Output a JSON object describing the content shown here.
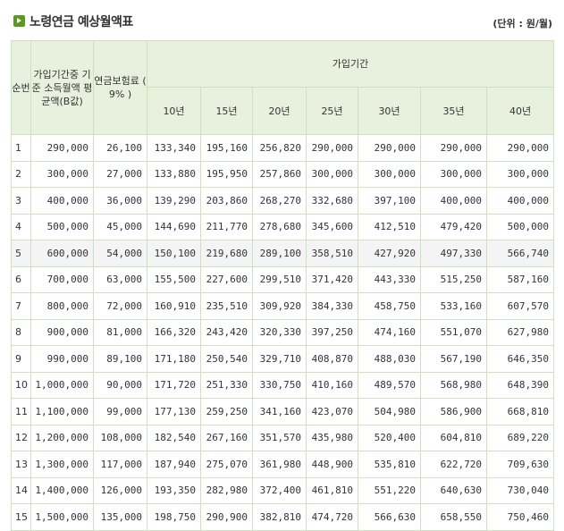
{
  "page": {
    "title": "노령연금 예상월액표",
    "unit": "(단위 : 원/월)"
  },
  "table": {
    "headers": {
      "seq": "순번",
      "income": "가입기간중 기준 소득월액 평균액(B값)",
      "premium": "연금보험료 ( 9% )",
      "period": "가입기간",
      "years": [
        "10년",
        "15년",
        "20년",
        "25년",
        "30년",
        "35년",
        "40년"
      ]
    },
    "rows": [
      {
        "no": "1",
        "income": "290,000",
        "premium": "26,100",
        "v": [
          "133,340",
          "195,160",
          "256,820",
          "290,000",
          "290,000",
          "290,000",
          "290,000"
        ]
      },
      {
        "no": "2",
        "income": "300,000",
        "premium": "27,000",
        "v": [
          "133,880",
          "195,950",
          "257,860",
          "300,000",
          "300,000",
          "300,000",
          "300,000"
        ]
      },
      {
        "no": "3",
        "income": "400,000",
        "premium": "36,000",
        "v": [
          "139,290",
          "203,860",
          "268,270",
          "332,680",
          "397,100",
          "400,000",
          "400,000"
        ]
      },
      {
        "no": "4",
        "income": "500,000",
        "premium": "45,000",
        "v": [
          "144,690",
          "211,770",
          "278,680",
          "345,600",
          "412,510",
          "479,420",
          "500,000"
        ]
      },
      {
        "no": "5",
        "income": "600,000",
        "premium": "54,000",
        "v": [
          "150,100",
          "219,680",
          "289,100",
          "358,510",
          "427,920",
          "497,330",
          "566,740"
        ]
      },
      {
        "no": "6",
        "income": "700,000",
        "premium": "63,000",
        "v": [
          "155,500",
          "227,600",
          "299,510",
          "371,420",
          "443,330",
          "515,250",
          "587,160"
        ]
      },
      {
        "no": "7",
        "income": "800,000",
        "premium": "72,000",
        "v": [
          "160,910",
          "235,510",
          "309,920",
          "384,330",
          "458,750",
          "533,160",
          "607,570"
        ]
      },
      {
        "no": "8",
        "income": "900,000",
        "premium": "81,000",
        "v": [
          "166,320",
          "243,420",
          "320,330",
          "397,250",
          "474,160",
          "551,070",
          "627,980"
        ]
      },
      {
        "no": "9",
        "income": "990,000",
        "premium": "89,100",
        "v": [
          "171,180",
          "250,540",
          "329,710",
          "408,870",
          "488,030",
          "567,190",
          "646,350"
        ]
      },
      {
        "no": "10",
        "income": "1,000,000",
        "premium": "90,000",
        "v": [
          "171,720",
          "251,330",
          "330,750",
          "410,160",
          "489,570",
          "568,980",
          "648,390"
        ]
      },
      {
        "no": "11",
        "income": "1,100,000",
        "premium": "99,000",
        "v": [
          "177,130",
          "259,250",
          "341,160",
          "423,070",
          "504,980",
          "586,900",
          "668,810"
        ]
      },
      {
        "no": "12",
        "income": "1,200,000",
        "premium": "108,000",
        "v": [
          "182,540",
          "267,160",
          "351,570",
          "435,980",
          "520,400",
          "604,810",
          "689,220"
        ]
      },
      {
        "no": "13",
        "income": "1,300,000",
        "premium": "117,000",
        "v": [
          "187,940",
          "275,070",
          "361,980",
          "448,900",
          "535,810",
          "622,720",
          "709,630"
        ]
      },
      {
        "no": "14",
        "income": "1,400,000",
        "premium": "126,000",
        "v": [
          "193,350",
          "282,980",
          "372,400",
          "461,810",
          "551,220",
          "640,630",
          "730,040"
        ]
      },
      {
        "no": "15",
        "income": "1,500,000",
        "premium": "135,000",
        "v": [
          "198,750",
          "290,900",
          "382,810",
          "474,720",
          "566,630",
          "658,550",
          "750,460"
        ]
      }
    ]
  }
}
